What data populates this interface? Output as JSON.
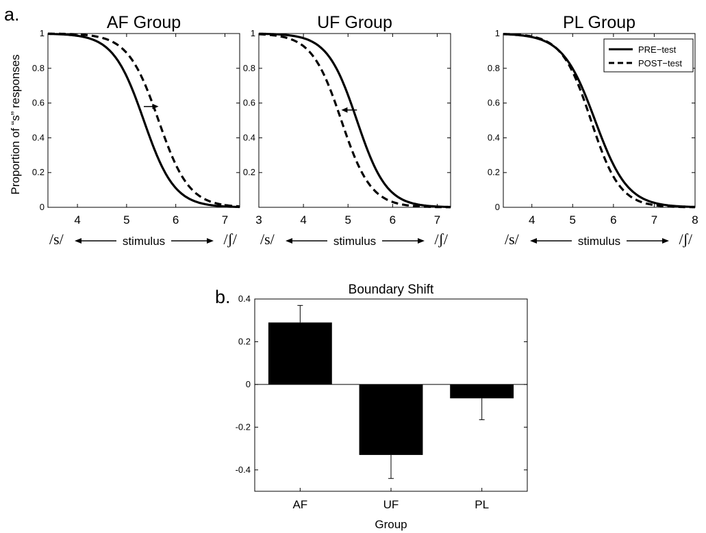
{
  "panel_a_label": "a.",
  "panel_b_label": "b.",
  "shared_ylabel": "Proportion of “s” responses",
  "stimulus_axis": {
    "left": "/s/",
    "middle": "stimulus",
    "right": "/ʃ/"
  },
  "colors": {
    "ink": "#000000",
    "background": "#ffffff"
  },
  "chart_data": [
    {
      "type": "line",
      "title": "AF Group",
      "xlim": [
        3.4,
        7.3
      ],
      "ylim": [
        0,
        1
      ],
      "xticks": [
        4,
        5,
        6,
        7
      ],
      "yticks": [
        0,
        0.2,
        0.4,
        0.6,
        0.8,
        1
      ],
      "series": [
        {
          "style": "solid",
          "midpoint": 5.35,
          "slope": 3.2
        },
        {
          "style": "dashed",
          "midpoint": 5.65,
          "slope": 3.2
        }
      ],
      "arrow": {
        "from_x": 5.35,
        "to_x": 5.65,
        "y": 0.58
      },
      "legend": null
    },
    {
      "type": "line",
      "title": "UF Group",
      "xlim": [
        3,
        7.3
      ],
      "ylim": [
        0,
        1
      ],
      "xticks": [
        3,
        4,
        5,
        6,
        7
      ],
      "yticks": [
        0.2,
        0.4,
        0.6,
        0.8,
        1
      ],
      "series": [
        {
          "style": "solid",
          "midpoint": 5.2,
          "slope": 3.0
        },
        {
          "style": "dashed",
          "midpoint": 4.85,
          "slope": 3.0
        }
      ],
      "arrow": {
        "from_x": 5.2,
        "to_x": 4.85,
        "y": 0.56
      },
      "legend": null
    },
    {
      "type": "line",
      "title": "PL Group",
      "xlim": [
        3.3,
        8
      ],
      "ylim": [
        0,
        1
      ],
      "xticks": [
        4,
        5,
        6,
        7,
        8
      ],
      "yticks": [
        0,
        0.2,
        0.4,
        0.6,
        0.8,
        1
      ],
      "series": [
        {
          "name": "PRE−test",
          "style": "solid",
          "midpoint": 5.55,
          "slope": 2.5
        },
        {
          "name": "POST−test",
          "style": "dashed",
          "midpoint": 5.45,
          "slope": 2.8
        }
      ],
      "arrow": null,
      "legend": "top-right"
    },
    {
      "type": "bar",
      "title": "Boundary Shift",
      "xlabel": "Group",
      "categories": [
        "AF",
        "UF",
        "PL"
      ],
      "values": [
        0.29,
        -0.33,
        -0.065
      ],
      "errors": [
        0.08,
        0.11,
        0.1
      ],
      "ylim": [
        -0.5,
        0.4
      ],
      "yticks": [
        -0.4,
        -0.2,
        0,
        0.2,
        0.4
      ],
      "color": "#000000"
    }
  ]
}
